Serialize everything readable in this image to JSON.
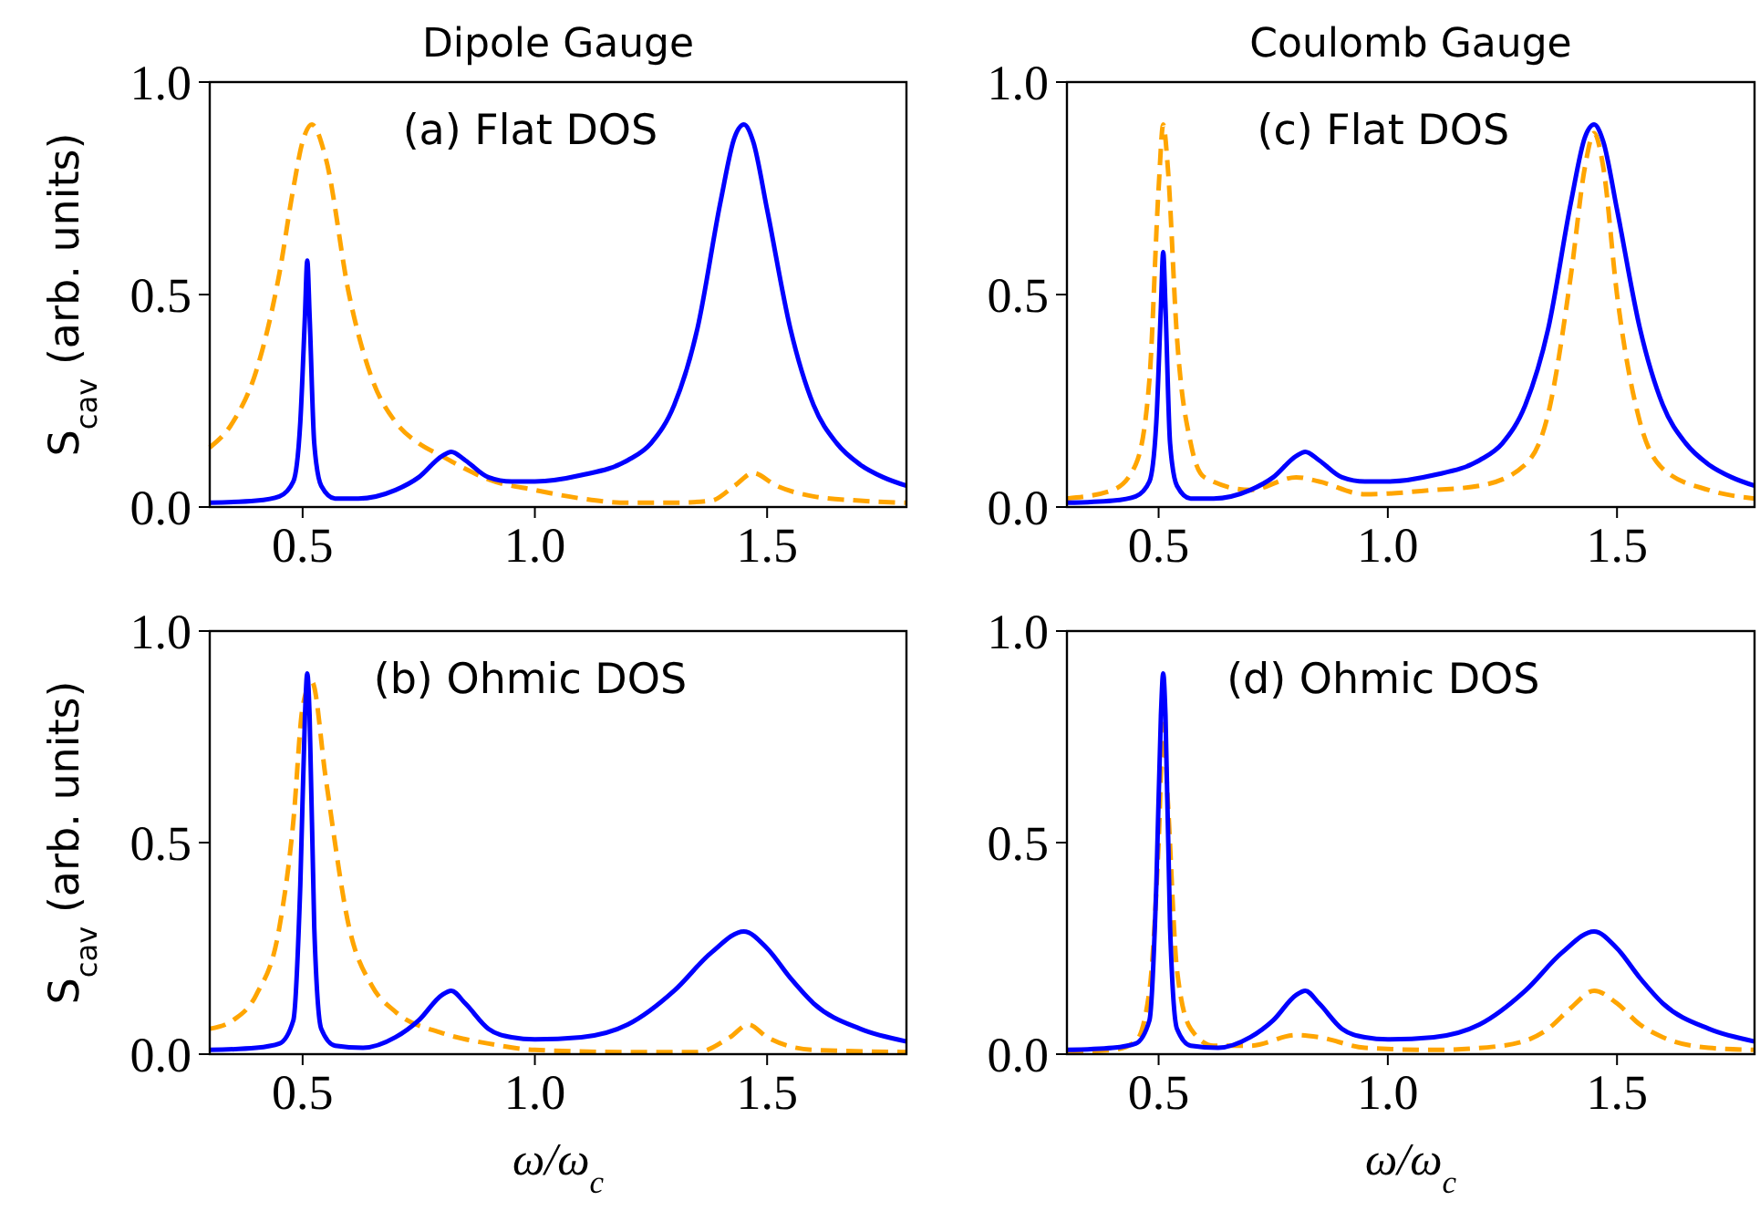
{
  "chart_data": [
    {
      "type": "line",
      "title": "Dipole Gauge",
      "annotations": [
        "(a) Flat DOS"
      ],
      "ylabel": "S$_{cav}$ (arb. units)",
      "xlim": [
        0.3,
        1.8
      ],
      "ylim": [
        0,
        1
      ],
      "xticks": [
        {
          "value": 0.5,
          "label": "0.5"
        },
        {
          "value": 1,
          "label": "1.0"
        },
        {
          "value": 1.5,
          "label": "1.5"
        }
      ],
      "yticks": [
        {
          "value": 0,
          "label": "0.0"
        },
        {
          "value": 0.5,
          "label": "0.5"
        },
        {
          "value": 1,
          "label": "1.0"
        }
      ],
      "series": [
        {
          "color": "#ffa500",
          "line_style": "dashed",
          "x": [
            0.3,
            0.35,
            0.4,
            0.45,
            0.48,
            0.5,
            0.52,
            0.55,
            0.6,
            0.65,
            0.7,
            0.75,
            0.8,
            0.85,
            0.9,
            1.0,
            1.1,
            1.2,
            1.3,
            1.38,
            1.43,
            1.47,
            1.52,
            1.6,
            1.7,
            1.8
          ],
          "values": [
            0.14,
            0.2,
            0.32,
            0.55,
            0.75,
            0.86,
            0.9,
            0.82,
            0.5,
            0.3,
            0.2,
            0.15,
            0.12,
            0.09,
            0.065,
            0.04,
            0.02,
            0.01,
            0.01,
            0.015,
            0.05,
            0.08,
            0.05,
            0.025,
            0.015,
            0.01
          ]
        },
        {
          "color": "#0000ff",
          "line_style": "solid",
          "x": [
            0.3,
            0.4,
            0.45,
            0.48,
            0.495,
            0.505,
            0.51,
            0.515,
            0.525,
            0.54,
            0.57,
            0.62,
            0.7,
            0.75,
            0.8,
            0.82,
            0.85,
            0.9,
            0.95,
            1.0,
            1.1,
            1.2,
            1.25,
            1.3,
            1.35,
            1.4,
            1.43,
            1.45,
            1.47,
            1.5,
            1.55,
            1.6,
            1.65,
            1.7,
            1.75,
            1.8
          ],
          "values": [
            0.01,
            0.015,
            0.025,
            0.06,
            0.2,
            0.45,
            0.58,
            0.45,
            0.15,
            0.05,
            0.02,
            0.02,
            0.04,
            0.07,
            0.12,
            0.13,
            0.11,
            0.07,
            0.06,
            0.06,
            0.075,
            0.11,
            0.15,
            0.24,
            0.42,
            0.72,
            0.87,
            0.9,
            0.86,
            0.7,
            0.42,
            0.24,
            0.15,
            0.1,
            0.07,
            0.05
          ]
        }
      ]
    },
    {
      "type": "line",
      "title": "Coulomb Gauge",
      "annotations": [
        "(c) Flat DOS"
      ],
      "xlim": [
        0.3,
        1.8
      ],
      "ylim": [
        0,
        1
      ],
      "xticks": [
        {
          "value": 0.5,
          "label": "0.5"
        },
        {
          "value": 1,
          "label": "1.0"
        },
        {
          "value": 1.5,
          "label": "1.5"
        }
      ],
      "yticks": [
        {
          "value": 0,
          "label": "0.0"
        },
        {
          "value": 0.5,
          "label": "0.5"
        },
        {
          "value": 1,
          "label": "1.0"
        }
      ],
      "series": [
        {
          "color": "#ffa500",
          "line_style": "dashed",
          "x": [
            0.3,
            0.4,
            0.45,
            0.48,
            0.5,
            0.51,
            0.52,
            0.54,
            0.57,
            0.6,
            0.7,
            0.8,
            0.85,
            0.95,
            1.1,
            1.2,
            1.3,
            1.35,
            1.4,
            1.43,
            1.45,
            1.47,
            1.5,
            1.55,
            1.6,
            1.7,
            1.8
          ],
          "values": [
            0.02,
            0.04,
            0.1,
            0.3,
            0.75,
            0.9,
            0.8,
            0.4,
            0.15,
            0.07,
            0.04,
            0.07,
            0.06,
            0.03,
            0.04,
            0.05,
            0.1,
            0.22,
            0.55,
            0.8,
            0.88,
            0.8,
            0.5,
            0.2,
            0.09,
            0.04,
            0.02
          ]
        },
        {
          "color": "#0000ff",
          "line_style": "solid",
          "x": [
            0.3,
            0.4,
            0.45,
            0.48,
            0.495,
            0.505,
            0.51,
            0.515,
            0.525,
            0.54,
            0.57,
            0.62,
            0.7,
            0.75,
            0.8,
            0.82,
            0.85,
            0.9,
            0.95,
            1.0,
            1.1,
            1.2,
            1.25,
            1.3,
            1.35,
            1.4,
            1.43,
            1.45,
            1.47,
            1.5,
            1.55,
            1.6,
            1.65,
            1.7,
            1.75,
            1.8
          ],
          "values": [
            0.01,
            0.015,
            0.025,
            0.06,
            0.2,
            0.47,
            0.6,
            0.47,
            0.15,
            0.05,
            0.02,
            0.02,
            0.04,
            0.07,
            0.12,
            0.13,
            0.11,
            0.07,
            0.06,
            0.06,
            0.075,
            0.11,
            0.15,
            0.24,
            0.42,
            0.72,
            0.87,
            0.9,
            0.86,
            0.7,
            0.42,
            0.24,
            0.15,
            0.1,
            0.07,
            0.05
          ]
        }
      ]
    },
    {
      "type": "line",
      "annotations": [
        "(b) Ohmic DOS"
      ],
      "xlabel": "ω/ω$_{c}$",
      "ylabel": "S$_{cav}$ (arb. units)",
      "xlim": [
        0.3,
        1.8
      ],
      "ylim": [
        0,
        1
      ],
      "xticks": [
        {
          "value": 0.5,
          "label": "0.5"
        },
        {
          "value": 1,
          "label": "1.0"
        },
        {
          "value": 1.5,
          "label": "1.5"
        }
      ],
      "yticks": [
        {
          "value": 0,
          "label": "0.0"
        },
        {
          "value": 0.5,
          "label": "0.5"
        },
        {
          "value": 1,
          "label": "1.0"
        }
      ],
      "series": [
        {
          "color": "#ffa500",
          "line_style": "dashed",
          "x": [
            0.3,
            0.35,
            0.4,
            0.45,
            0.48,
            0.5,
            0.52,
            0.55,
            0.6,
            0.65,
            0.7,
            0.8,
            0.9,
            1.0,
            1.2,
            1.35,
            1.42,
            1.46,
            1.5,
            1.6,
            1.8
          ],
          "values": [
            0.06,
            0.08,
            0.14,
            0.3,
            0.55,
            0.82,
            0.88,
            0.65,
            0.3,
            0.16,
            0.1,
            0.05,
            0.025,
            0.01,
            0.005,
            0.005,
            0.04,
            0.07,
            0.04,
            0.01,
            0.005
          ]
        },
        {
          "color": "#0000ff",
          "line_style": "solid",
          "x": [
            0.3,
            0.4,
            0.45,
            0.48,
            0.495,
            0.505,
            0.51,
            0.515,
            0.525,
            0.54,
            0.57,
            0.63,
            0.7,
            0.75,
            0.8,
            0.82,
            0.85,
            0.9,
            0.95,
            1.0,
            1.1,
            1.2,
            1.3,
            1.38,
            1.45,
            1.5,
            1.55,
            1.6,
            1.7,
            1.8
          ],
          "values": [
            0.01,
            0.015,
            0.025,
            0.08,
            0.4,
            0.8,
            0.9,
            0.8,
            0.3,
            0.06,
            0.02,
            0.015,
            0.04,
            0.08,
            0.14,
            0.15,
            0.12,
            0.06,
            0.04,
            0.035,
            0.04,
            0.07,
            0.15,
            0.24,
            0.29,
            0.25,
            0.18,
            0.12,
            0.06,
            0.03
          ]
        }
      ]
    },
    {
      "type": "line",
      "annotations": [
        "(d) Ohmic DOS"
      ],
      "xlabel": "ω/ω$_{c}$",
      "xlim": [
        0.3,
        1.8
      ],
      "ylim": [
        0,
        1
      ],
      "xticks": [
        {
          "value": 0.5,
          "label": "0.5"
        },
        {
          "value": 1,
          "label": "1.0"
        },
        {
          "value": 1.5,
          "label": "1.5"
        }
      ],
      "yticks": [
        {
          "value": 0,
          "label": "0.0"
        },
        {
          "value": 0.5,
          "label": "0.5"
        },
        {
          "value": 1,
          "label": "1.0"
        }
      ],
      "series": [
        {
          "color": "#ffa500",
          "line_style": "dashed",
          "x": [
            0.3,
            0.4,
            0.45,
            0.48,
            0.5,
            0.51,
            0.52,
            0.54,
            0.57,
            0.62,
            0.7,
            0.8,
            0.85,
            0.95,
            1.1,
            1.25,
            1.35,
            1.4,
            1.45,
            1.5,
            1.55,
            1.6,
            1.7,
            1.8
          ],
          "values": [
            0.005,
            0.01,
            0.03,
            0.15,
            0.5,
            0.78,
            0.6,
            0.2,
            0.06,
            0.02,
            0.02,
            0.045,
            0.04,
            0.015,
            0.01,
            0.02,
            0.06,
            0.11,
            0.15,
            0.12,
            0.07,
            0.04,
            0.015,
            0.01
          ]
        },
        {
          "color": "#0000ff",
          "line_style": "solid",
          "x": [
            0.3,
            0.4,
            0.45,
            0.48,
            0.495,
            0.505,
            0.51,
            0.515,
            0.525,
            0.54,
            0.57,
            0.63,
            0.7,
            0.75,
            0.8,
            0.82,
            0.85,
            0.9,
            0.95,
            1.0,
            1.1,
            1.2,
            1.3,
            1.38,
            1.45,
            1.5,
            1.55,
            1.6,
            1.7,
            1.8
          ],
          "values": [
            0.01,
            0.015,
            0.025,
            0.08,
            0.4,
            0.8,
            0.9,
            0.8,
            0.3,
            0.06,
            0.02,
            0.015,
            0.04,
            0.08,
            0.14,
            0.15,
            0.12,
            0.06,
            0.04,
            0.035,
            0.04,
            0.07,
            0.15,
            0.24,
            0.29,
            0.25,
            0.18,
            0.12,
            0.06,
            0.03
          ]
        }
      ]
    }
  ]
}
